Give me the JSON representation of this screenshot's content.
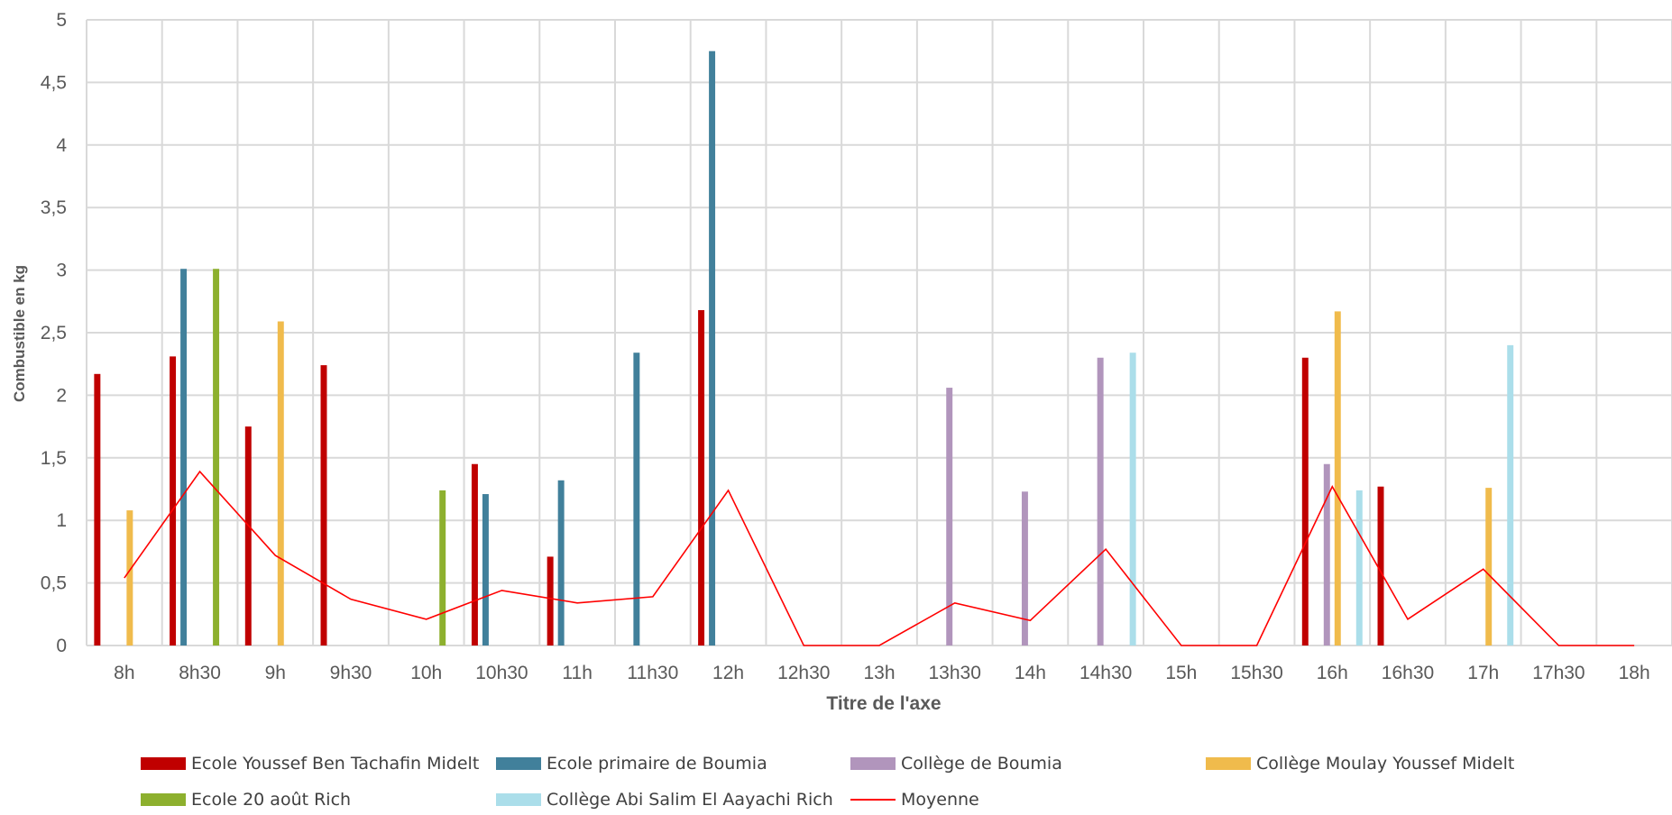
{
  "chart_data": {
    "type": "bar",
    "xlabel": "Titre de l'axe",
    "ylabel": "Combustible en kg",
    "ylim": [
      0,
      5
    ],
    "y_ticks": [
      "0",
      "0,5",
      "1",
      "1,5",
      "2",
      "2,5",
      "3",
      "3,5",
      "4",
      "4,5",
      "5"
    ],
    "grid": true,
    "legend_position": "bottom",
    "categories": [
      "8h",
      "8h30",
      "9h",
      "9h30",
      "10h",
      "10h30",
      "11h",
      "11h30",
      "12h",
      "12h30",
      "13h",
      "13h30",
      "14h",
      "14h30",
      "15h",
      "15h30",
      "16h",
      "16h30",
      "17h",
      "17h30",
      "18h"
    ],
    "series": [
      {
        "name": "Ecole Youssef Ben Tachafin Midelt",
        "kind": "bar",
        "color": "#c00000",
        "values": [
          2.17,
          2.31,
          1.75,
          2.24,
          null,
          1.45,
          0.71,
          null,
          2.68,
          null,
          null,
          null,
          null,
          null,
          null,
          null,
          2.3,
          1.27,
          null,
          null,
          null
        ]
      },
      {
        "name": "Ecole primaire de Boumia",
        "kind": "bar",
        "color": "#41809b",
        "values": [
          null,
          3.01,
          null,
          null,
          null,
          1.21,
          1.32,
          2.34,
          4.75,
          null,
          null,
          null,
          null,
          null,
          null,
          null,
          null,
          null,
          null,
          null,
          null
        ]
      },
      {
        "name": "Collège de Boumia",
        "kind": "bar",
        "color": "#b195bc",
        "values": [
          null,
          null,
          null,
          null,
          null,
          null,
          null,
          null,
          null,
          null,
          null,
          2.06,
          1.23,
          2.3,
          null,
          null,
          1.45,
          null,
          null,
          null,
          null
        ]
      },
      {
        "name": "Collège Moulay Youssef Midelt",
        "kind": "bar",
        "color": "#f0bb4c",
        "values": [
          1.08,
          null,
          2.59,
          null,
          null,
          null,
          null,
          null,
          null,
          null,
          null,
          null,
          null,
          null,
          null,
          null,
          2.67,
          null,
          1.26,
          null,
          null
        ]
      },
      {
        "name": "Ecole 20 août Rich",
        "kind": "bar",
        "color": "#8db02e",
        "values": [
          null,
          3.01,
          null,
          null,
          1.24,
          null,
          null,
          null,
          null,
          null,
          null,
          null,
          null,
          null,
          null,
          null,
          null,
          null,
          null,
          null,
          null
        ]
      },
      {
        "name": "Collège Abi Salim El Aayachi Rich",
        "kind": "bar",
        "color": "#abdeea",
        "values": [
          null,
          null,
          null,
          null,
          null,
          null,
          null,
          null,
          null,
          null,
          null,
          null,
          null,
          2.34,
          null,
          null,
          1.24,
          null,
          2.4,
          null,
          null
        ]
      },
      {
        "name": "Moyenne",
        "kind": "line",
        "color": "#ff0000",
        "values": [
          0.54,
          1.39,
          0.72,
          0.37,
          0.21,
          0.44,
          0.34,
          0.39,
          1.24,
          0,
          0,
          0.34,
          0.2,
          0.77,
          0,
          0,
          1.27,
          0.21,
          0.61,
          0,
          0
        ]
      }
    ]
  }
}
